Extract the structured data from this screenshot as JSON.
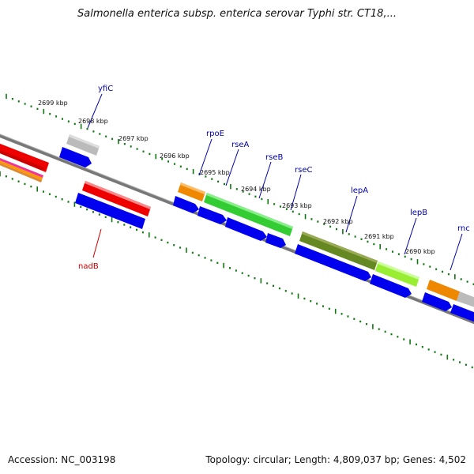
{
  "title": "Salmonella enterica subsp. enterica serovar Typhi str. CT18,...",
  "footer": {
    "accession": "Accession: NC_003198",
    "summary": "Topology: circular; Length: 4,809,037 bp; Genes: 4,502"
  },
  "colors": {
    "backbone": "#7a7a7a",
    "gene_blue": "#0000ee",
    "gene_red": "#ee0000",
    "gene_orange": "#ee8800",
    "gene_green": "#33cc33",
    "gene_olive": "#668822",
    "gene_lime": "#99ee33",
    "gene_gray": "#bbbbbb",
    "tick_green": "#117711",
    "label_blue": "#0000aa",
    "label_red": "#cc0000"
  },
  "kbp_labels": [
    "2699 kbp",
    "2698 kbp",
    "2697 kbp",
    "2696 kbp",
    "2695 kbp",
    "2694 kbp",
    "2693 kbp",
    "2692 kbp",
    "2691 kbp",
    "2690 kbp"
  ],
  "gene_labels": [
    {
      "text": "yfiC",
      "color": "blue"
    },
    {
      "text": "rpoE",
      "color": "blue"
    },
    {
      "text": "rseA",
      "color": "blue"
    },
    {
      "text": "rseB",
      "color": "blue"
    },
    {
      "text": "rseC",
      "color": "blue"
    },
    {
      "text": "lepA",
      "color": "blue"
    },
    {
      "text": "lepB",
      "color": "blue"
    },
    {
      "text": "rnc",
      "color": "blue"
    },
    {
      "text": "nadB",
      "color": "red"
    }
  ]
}
